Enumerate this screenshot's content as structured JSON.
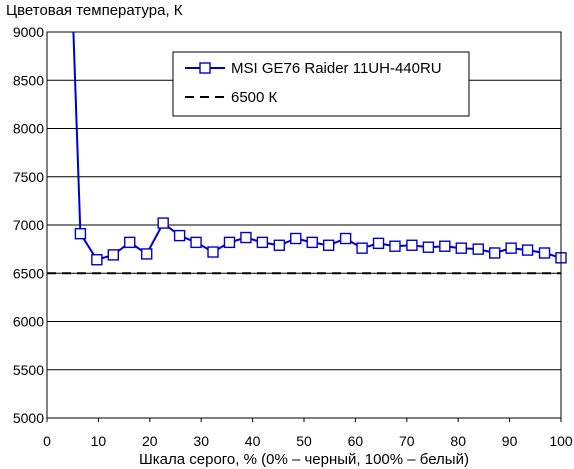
{
  "chart_data": {
    "type": "line",
    "ylabel": "Цветовая температура, К",
    "xlabel": "Шкала серого, % (0% – черный, 100% – белый)",
    "xlim": [
      0,
      100
    ],
    "ylim": [
      5000,
      9000
    ],
    "x_ticks": [
      "0",
      "10",
      "20",
      "30",
      "40",
      "50",
      "60",
      "70",
      "80",
      "90",
      "100"
    ],
    "y_ticks": [
      "5000",
      "5500",
      "6000",
      "6500",
      "7000",
      "7500",
      "8000",
      "8500",
      "9000"
    ],
    "grid": "horizontal",
    "legend": "top-center",
    "series": [
      {
        "name": "MSI GE76 Raider 11UH-440RU",
        "color": "#0000cc",
        "marker": "square",
        "x": [
          3.2,
          6.5,
          9.7,
          12.9,
          16.1,
          19.4,
          22.6,
          25.8,
          29.0,
          32.3,
          35.5,
          38.7,
          41.9,
          45.2,
          48.4,
          51.6,
          54.8,
          58.1,
          61.3,
          64.5,
          67.7,
          71.0,
          74.2,
          77.4,
          80.6,
          83.9,
          87.1,
          90.3,
          93.5,
          96.8,
          100.0
        ],
        "y": [
          12000,
          6910,
          6640,
          6690,
          6820,
          6700,
          7020,
          6890,
          6820,
          6720,
          6820,
          6870,
          6820,
          6790,
          6860,
          6820,
          6790,
          6860,
          6760,
          6810,
          6780,
          6790,
          6770,
          6780,
          6760,
          6750,
          6710,
          6760,
          6740,
          6710,
          6660
        ]
      },
      {
        "name": "6500 К",
        "color": "#000000",
        "style": "dashed",
        "x": [
          0,
          100
        ],
        "y": [
          6500,
          6500
        ]
      }
    ]
  }
}
